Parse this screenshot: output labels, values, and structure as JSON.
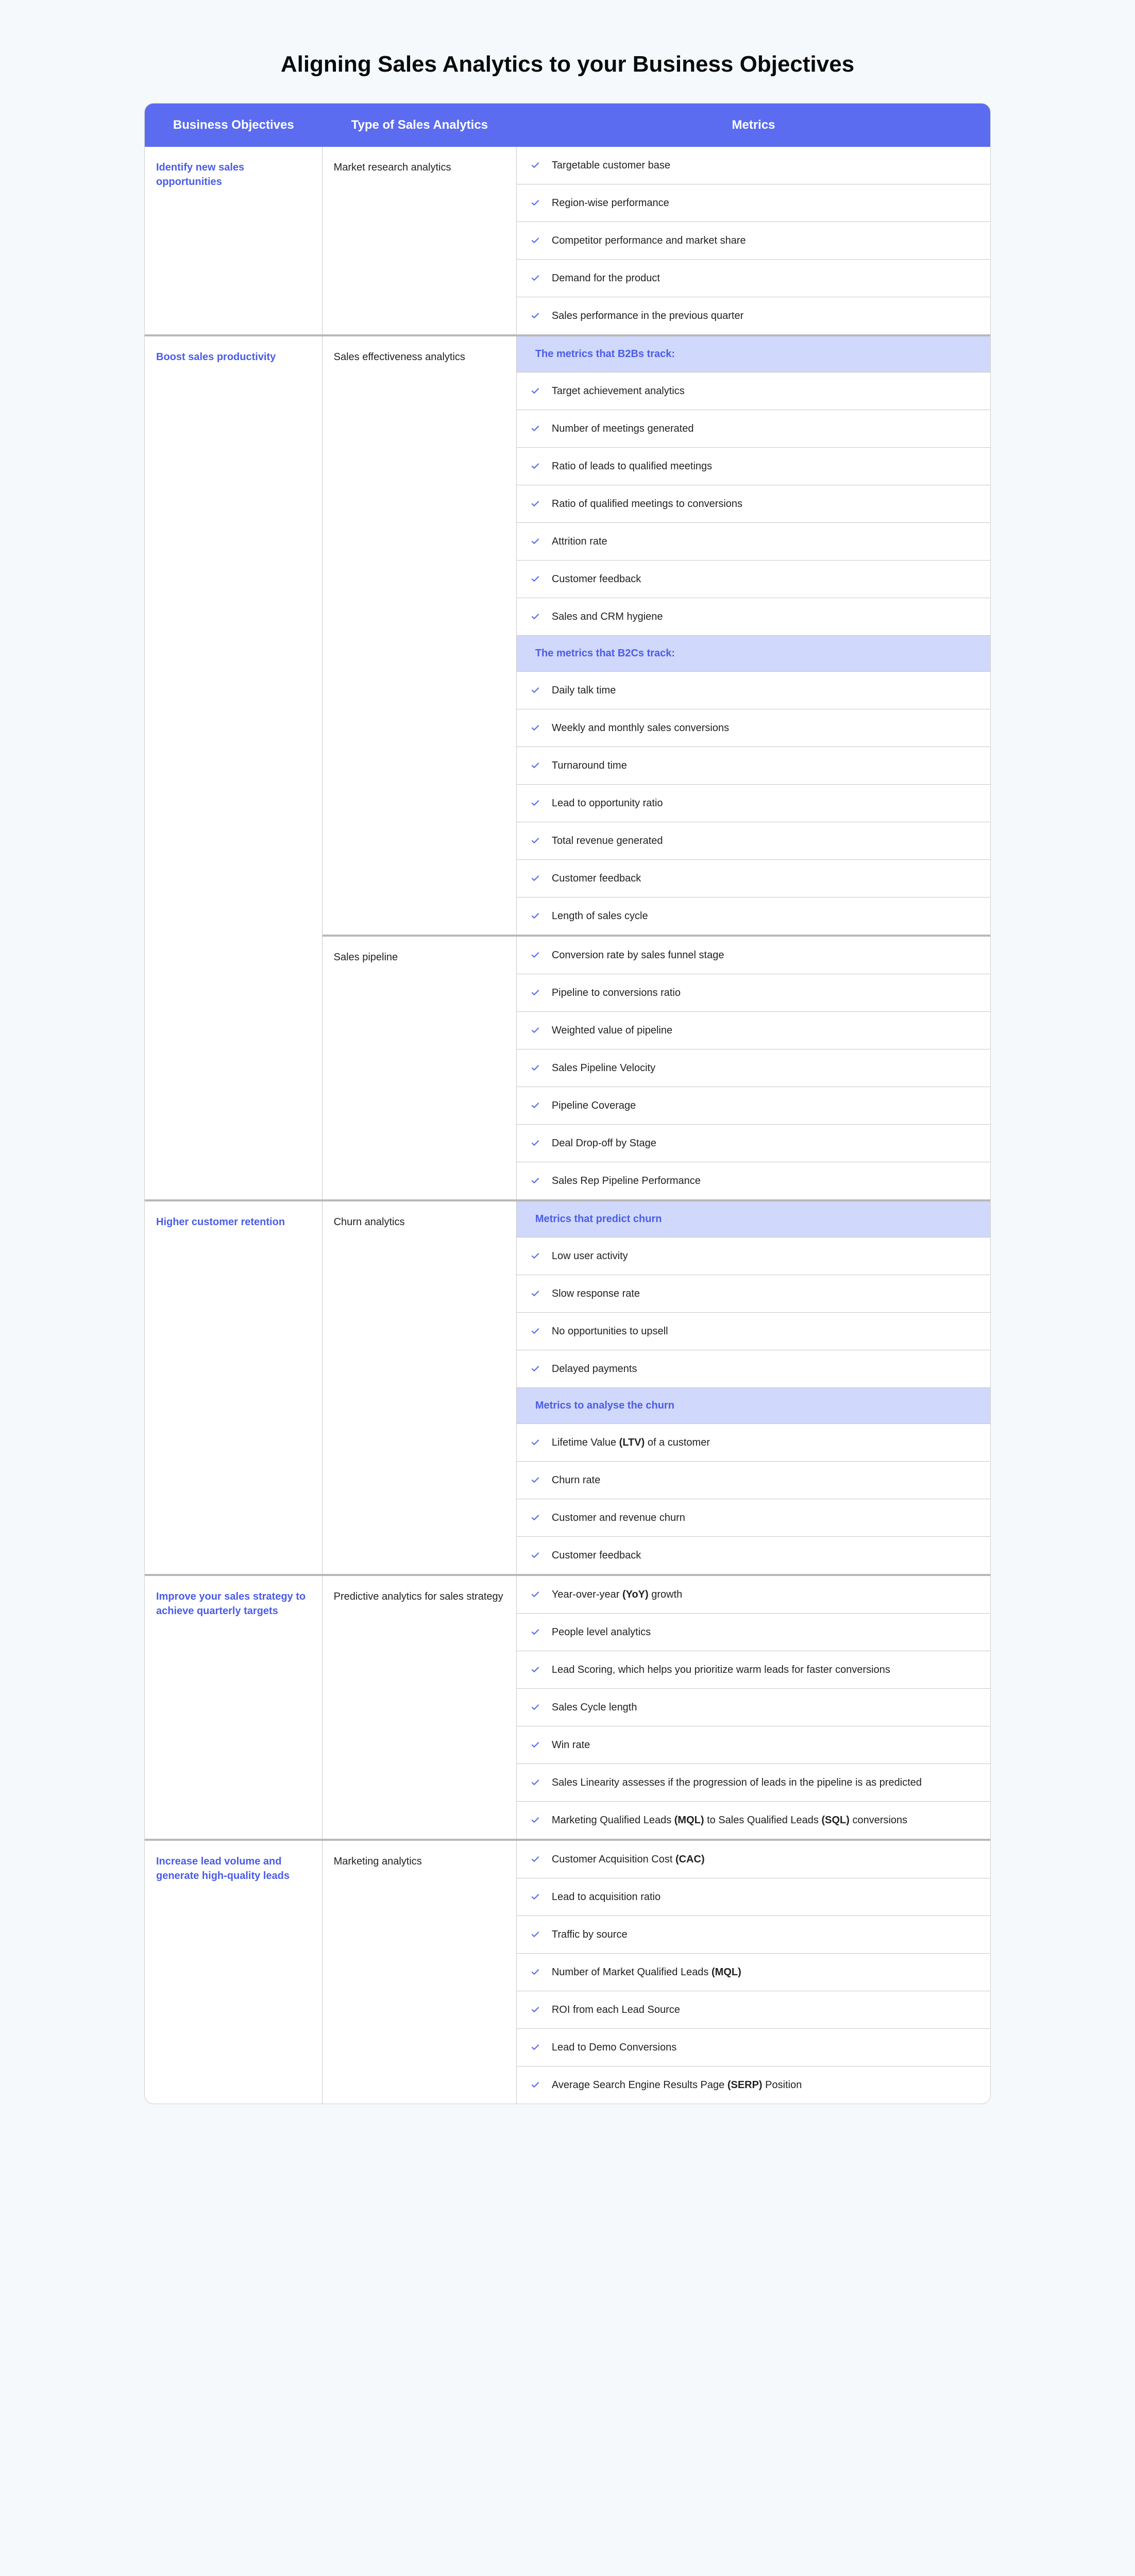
{
  "title": "Aligning Sales Analytics to your Business Objectives",
  "colors": {
    "header_bg": "#5b6cf0",
    "header_fg": "#ffffff",
    "objective_fg": "#4a5ce8",
    "subheader_bg": "#d0d8fb",
    "subheader_fg": "#4a5ce8",
    "body_fg": "#222222",
    "border": "#c8c8c8",
    "section_border": "#b8b8b8",
    "page_bg": "#f5f9fc",
    "check": "#5b6cf0"
  },
  "headers": {
    "col1": "Business Objectives",
    "col2": "Type of Sales Analytics",
    "col3": "Metrics"
  },
  "sections": [
    {
      "objective": "Identify new sales opportunities",
      "types": [
        {
          "type": "Market research analytics",
          "metrics": [
            {
              "text": "Targetable customer base"
            },
            {
              "text": "Region-wise performance"
            },
            {
              "text": "Competitor performance and market share"
            },
            {
              "text": "Demand for the product"
            },
            {
              "text": "Sales performance in the previous quarter"
            }
          ]
        }
      ]
    },
    {
      "objective": "Boost sales productivity",
      "types": [
        {
          "type": "Sales effectiveness analytics",
          "metrics": [
            {
              "subheader": "The metrics that B2Bs track:"
            },
            {
              "text": "Target achievement analytics"
            },
            {
              "text": "Number of meetings generated"
            },
            {
              "text": "Ratio of leads to qualified meetings"
            },
            {
              "text": "Ratio of qualified meetings to conversions"
            },
            {
              "text": "Attrition rate"
            },
            {
              "text": "Customer feedback"
            },
            {
              "text": "Sales and CRM hygiene"
            },
            {
              "subheader": "The metrics that B2Cs track:"
            },
            {
              "text": "Daily talk time"
            },
            {
              "text": "Weekly and monthly sales conversions"
            },
            {
              "text": "Turnaround time"
            },
            {
              "text": "Lead to opportunity ratio"
            },
            {
              "text": "Total revenue generated"
            },
            {
              "text": "Customer feedback"
            },
            {
              "text": "Length of sales cycle"
            }
          ]
        },
        {
          "type": "Sales pipeline",
          "metrics": [
            {
              "text": "Conversion rate by sales funnel stage"
            },
            {
              "text": "Pipeline to conversions ratio"
            },
            {
              "text": "Weighted value of pipeline"
            },
            {
              "text": "Sales Pipeline Velocity"
            },
            {
              "text": "Pipeline Coverage"
            },
            {
              "text": "Deal Drop-off by Stage"
            },
            {
              "text": "Sales Rep Pipeline Performance"
            }
          ]
        }
      ]
    },
    {
      "objective": "Higher customer retention",
      "types": [
        {
          "type": "Churn analytics",
          "metrics": [
            {
              "subheader": "Metrics that predict churn"
            },
            {
              "text": "Low user activity"
            },
            {
              "text": "Slow response rate"
            },
            {
              "text": "No opportunities to upsell"
            },
            {
              "text": "Delayed payments"
            },
            {
              "subheader": "Metrics to analyse the churn"
            },
            {
              "html": "Lifetime Value <b>(LTV)</b> of a customer"
            },
            {
              "text": "Churn rate"
            },
            {
              "text": "Customer and revenue churn"
            },
            {
              "text": "Customer feedback"
            }
          ]
        }
      ]
    },
    {
      "objective": "Improve your sales strategy to achieve quarterly targets",
      "types": [
        {
          "type": "Predictive analytics for sales strategy",
          "metrics": [
            {
              "html": "Year-over-year <b>(YoY)</b> growth"
            },
            {
              "text": "People level analytics"
            },
            {
              "text": "Lead Scoring, which helps you prioritize warm leads for faster conversions"
            },
            {
              "text": "Sales Cycle length"
            },
            {
              "text": "Win rate"
            },
            {
              "text": "Sales Linearity assesses if the progression of leads in the pipeline is as predicted"
            },
            {
              "html": "Marketing Qualified Leads <b>(MQL)</b> to Sales Qualified Leads <b>(SQL)</b> conversions"
            }
          ]
        }
      ]
    },
    {
      "objective": "Increase lead volume and generate high-quality leads",
      "types": [
        {
          "type": "Marketing analytics",
          "metrics": [
            {
              "html": "Customer Acquisition Cost <b>(CAC)</b>"
            },
            {
              "text": "Lead to acquisition ratio"
            },
            {
              "text": "Traffic by source"
            },
            {
              "html": "Number of Market Qualified Leads <b>(MQL)</b>"
            },
            {
              "text": "ROI from each Lead Source"
            },
            {
              "text": "Lead to Demo Conversions"
            },
            {
              "html": "Average Search Engine Results Page <b>(SERP)</b> Position"
            }
          ]
        }
      ]
    }
  ]
}
